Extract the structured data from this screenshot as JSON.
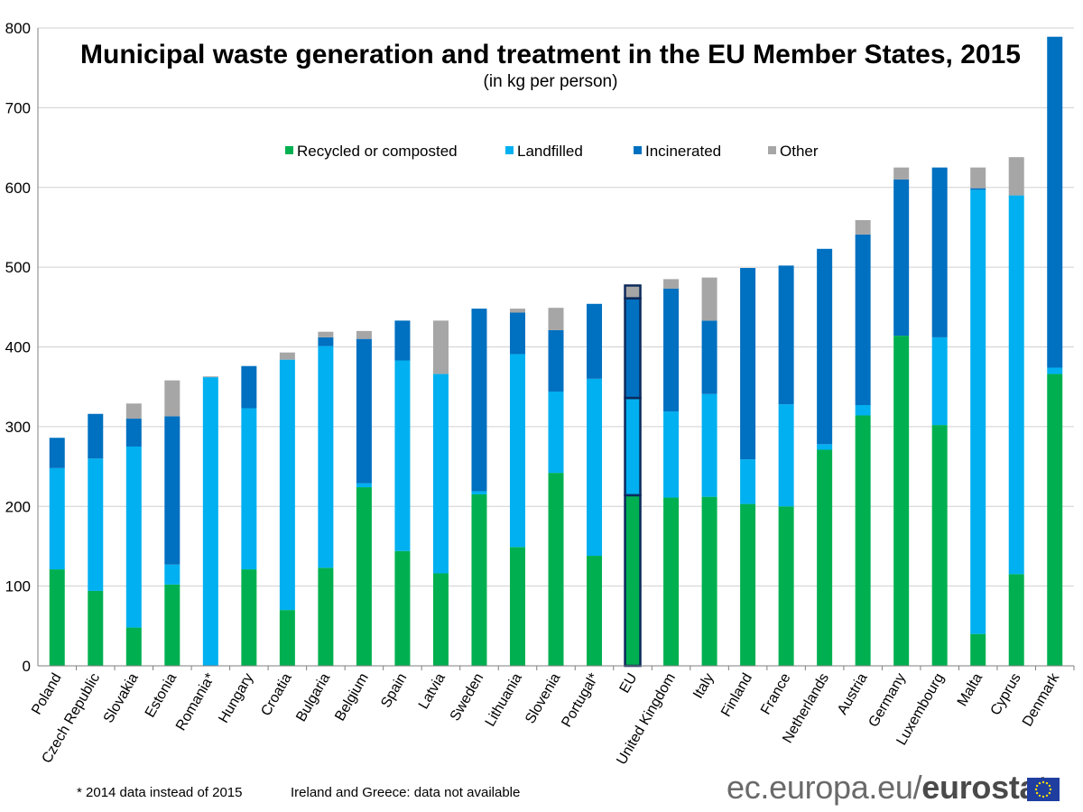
{
  "colors": {
    "recycled": "#00b050",
    "landfilled": "#00b0f0",
    "incinerated": "#0070c0",
    "other": "#a6a6a6",
    "eu_outline": "#0d2a5c",
    "grid": "#d0d0d0",
    "flag_blue": "#1f3ea0",
    "flag_stars": "#ffdd00"
  },
  "footnote_left": "* 2014 data instead of 2015",
  "footnote_right": "Ireland and Greece: data not available",
  "brand": {
    "part1": "ec.europa.eu/",
    "part2": "eurostat"
  },
  "chart_data": {
    "type": "bar",
    "stacked": true,
    "title": "Municipal waste generation and treatment in the EU Member States, 2015",
    "subtitle": "(in kg per person)",
    "ylim": [
      0,
      800
    ],
    "yticks": [
      0,
      100,
      200,
      300,
      400,
      500,
      600,
      700,
      800
    ],
    "grid": true,
    "legend_position": "top-center",
    "highlight_category": "EU",
    "categories": [
      "Poland",
      "Czech Republic",
      "Slovakia",
      "Estonia",
      "Romania*",
      "Hungary",
      "Croatia",
      "Bulgaria",
      "Belgium",
      "Spain",
      "Latvia",
      "Sweden",
      "Lithuania",
      "Slovenia",
      "Portugal*",
      "EU",
      "United Kingdom",
      "Italy",
      "Finland",
      "France",
      "Netherlands",
      "Austria",
      "Germany",
      "Luxembourg",
      "Malta",
      "Cyprus",
      "Denmark"
    ],
    "series": [
      {
        "name": "Recycled or composted",
        "color_key": "recycled",
        "values": [
          121,
          94,
          48,
          102,
          0,
          121,
          70,
          123,
          224,
          144,
          116,
          215,
          149,
          242,
          138,
          214,
          211,
          212,
          203,
          200,
          271,
          314,
          414,
          302,
          40,
          115,
          366
        ]
      },
      {
        "name": "Landfilled",
        "color_key": "landfilled",
        "values": [
          127,
          166,
          227,
          25,
          362,
          202,
          314,
          278,
          5,
          239,
          250,
          4,
          242,
          102,
          222,
          122,
          108,
          129,
          56,
          128,
          7,
          13,
          0,
          110,
          557,
          475,
          8
        ]
      },
      {
        "name": "Incinerated",
        "color_key": "incinerated",
        "values": [
          38,
          56,
          35,
          186,
          0,
          53,
          0,
          11,
          181,
          50,
          0,
          229,
          52,
          77,
          94,
          125,
          154,
          92,
          240,
          174,
          245,
          214,
          196,
          213,
          2,
          0,
          415
        ]
      },
      {
        "name": "Other",
        "color_key": "other",
        "values": [
          0,
          0,
          19,
          45,
          1,
          0,
          9,
          7,
          10,
          0,
          67,
          0,
          5,
          28,
          0,
          16,
          12,
          54,
          0,
          0,
          0,
          18,
          15,
          0,
          26,
          48,
          0
        ]
      }
    ]
  }
}
